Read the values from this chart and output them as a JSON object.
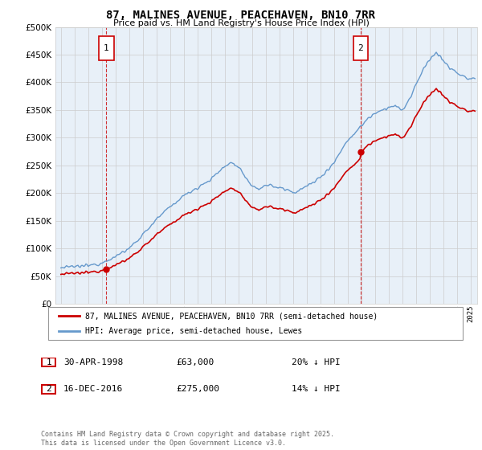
{
  "title": "87, MALINES AVENUE, PEACEHAVEN, BN10 7RR",
  "subtitle": "Price paid vs. HM Land Registry's House Price Index (HPI)",
  "legend_house": "87, MALINES AVENUE, PEACEHAVEN, BN10 7RR (semi-detached house)",
  "legend_hpi": "HPI: Average price, semi-detached house, Lewes",
  "sale1_label": "1",
  "sale1_date": "30-APR-1998",
  "sale1_price": "£63,000",
  "sale1_hpi": "20% ↓ HPI",
  "sale2_label": "2",
  "sale2_date": "16-DEC-2016",
  "sale2_price": "£275,000",
  "sale2_hpi": "14% ↓ HPI",
  "copyright": "Contains HM Land Registry data © Crown copyright and database right 2025.\nThis data is licensed under the Open Government Licence v3.0.",
  "house_color": "#cc0000",
  "hpi_color": "#6699cc",
  "sale_marker_color": "#cc0000",
  "dashed_line_color": "#cc0000",
  "grid_color": "#cccccc",
  "chart_bg_color": "#e8f0f8",
  "background_color": "#ffffff",
  "ylim": [
    0,
    500000
  ],
  "yticks": [
    0,
    50000,
    100000,
    150000,
    200000,
    250000,
    300000,
    350000,
    400000,
    450000,
    500000
  ],
  "sale1_x": 1998.33,
  "sale2_x": 2016.96,
  "hpi_anchors_x": [
    1995.0,
    1995.5,
    1996.0,
    1996.5,
    1997.0,
    1997.5,
    1998.0,
    1998.33,
    1999.0,
    2000.0,
    2001.0,
    2002.0,
    2003.0,
    2004.0,
    2005.0,
    2006.0,
    2007.0,
    2007.5,
    2008.0,
    2008.5,
    2009.0,
    2009.5,
    2010.0,
    2011.0,
    2012.0,
    2012.5,
    2013.0,
    2014.0,
    2015.0,
    2016.0,
    2016.5,
    2016.96,
    2017.5,
    2018.0,
    2019.0,
    2019.5,
    2020.0,
    2020.5,
    2021.0,
    2021.5,
    2022.0,
    2022.5,
    2023.0,
    2023.5,
    2024.0,
    2024.5,
    2025.0,
    2025.25
  ],
  "hpi_anchors_y": [
    65000,
    66000,
    67000,
    68000,
    69000,
    71000,
    74000,
    78750,
    85000,
    100000,
    125000,
    152000,
    175000,
    195000,
    210000,
    225000,
    248000,
    255000,
    248000,
    230000,
    210000,
    208000,
    215000,
    210000,
    202000,
    205000,
    212000,
    228000,
    255000,
    295000,
    308000,
    320000,
    335000,
    345000,
    355000,
    358000,
    348000,
    368000,
    395000,
    420000,
    440000,
    455000,
    440000,
    425000,
    418000,
    410000,
    405000,
    408000
  ]
}
